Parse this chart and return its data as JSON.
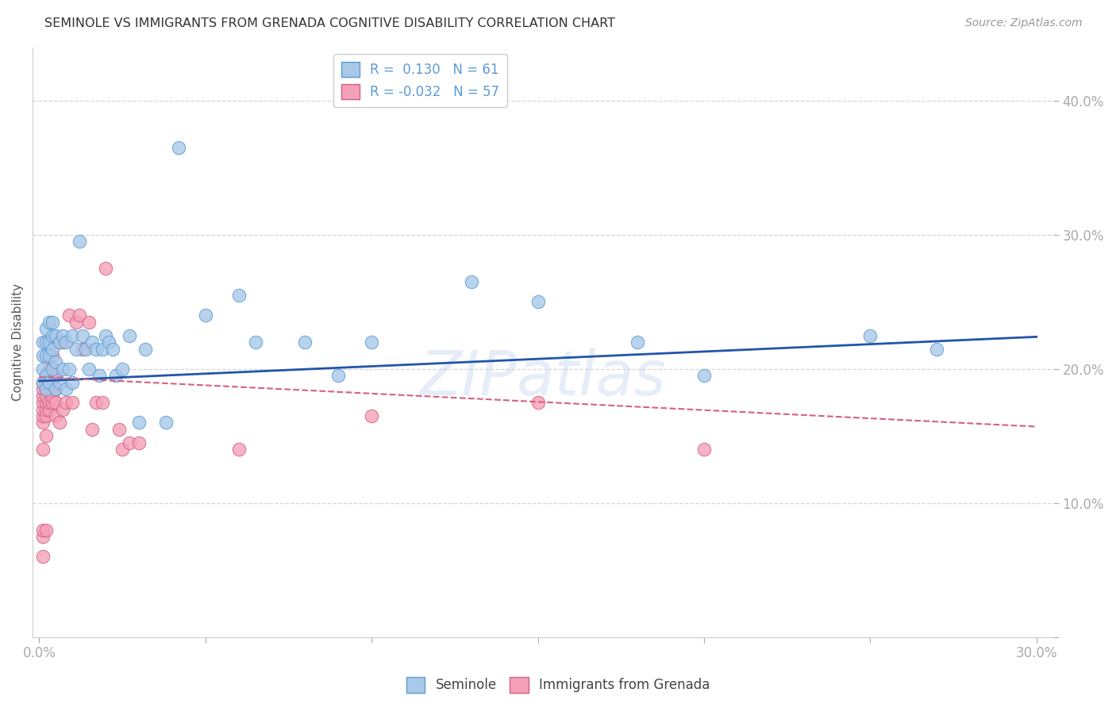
{
  "title": "SEMINOLE VS IMMIGRANTS FROM GRENADA COGNITIVE DISABILITY CORRELATION CHART",
  "source": "Source: ZipAtlas.com",
  "ylabel": "Cognitive Disability",
  "y_ticks": [
    0.0,
    0.1,
    0.2,
    0.3,
    0.4
  ],
  "y_tick_labels": [
    "",
    "10.0%",
    "20.0%",
    "30.0%",
    "40.0%"
  ],
  "x_ticks": [
    0.0,
    0.05,
    0.1,
    0.15,
    0.2,
    0.25,
    0.3
  ],
  "x_lim": [
    -0.002,
    0.305
  ],
  "y_lim": [
    0.0,
    0.44
  ],
  "watermark": "ZIPatlas",
  "blue_scatter_x": [
    0.001,
    0.001,
    0.001,
    0.001,
    0.002,
    0.002,
    0.002,
    0.002,
    0.002,
    0.003,
    0.003,
    0.003,
    0.003,
    0.003,
    0.004,
    0.004,
    0.004,
    0.004,
    0.005,
    0.005,
    0.005,
    0.006,
    0.006,
    0.007,
    0.007,
    0.008,
    0.008,
    0.009,
    0.01,
    0.01,
    0.011,
    0.012,
    0.013,
    0.014,
    0.015,
    0.016,
    0.017,
    0.018,
    0.019,
    0.02,
    0.021,
    0.022,
    0.023,
    0.025,
    0.027,
    0.03,
    0.032,
    0.038,
    0.042,
    0.05,
    0.06,
    0.065,
    0.08,
    0.09,
    0.1,
    0.13,
    0.15,
    0.18,
    0.2,
    0.25,
    0.27
  ],
  "blue_scatter_y": [
    0.19,
    0.2,
    0.21,
    0.22,
    0.185,
    0.195,
    0.21,
    0.22,
    0.23,
    0.19,
    0.21,
    0.22,
    0.235,
    0.19,
    0.2,
    0.215,
    0.225,
    0.235,
    0.185,
    0.205,
    0.225,
    0.19,
    0.22,
    0.2,
    0.225,
    0.185,
    0.22,
    0.2,
    0.19,
    0.225,
    0.215,
    0.295,
    0.225,
    0.215,
    0.2,
    0.22,
    0.215,
    0.195,
    0.215,
    0.225,
    0.22,
    0.215,
    0.195,
    0.2,
    0.225,
    0.16,
    0.215,
    0.16,
    0.365,
    0.24,
    0.255,
    0.22,
    0.22,
    0.195,
    0.22,
    0.265,
    0.25,
    0.22,
    0.195,
    0.225,
    0.215
  ],
  "pink_scatter_x": [
    0.001,
    0.001,
    0.001,
    0.001,
    0.001,
    0.001,
    0.001,
    0.001,
    0.001,
    0.001,
    0.001,
    0.002,
    0.002,
    0.002,
    0.002,
    0.002,
    0.002,
    0.002,
    0.002,
    0.002,
    0.003,
    0.003,
    0.003,
    0.003,
    0.003,
    0.004,
    0.004,
    0.004,
    0.004,
    0.004,
    0.005,
    0.005,
    0.005,
    0.005,
    0.006,
    0.006,
    0.007,
    0.007,
    0.008,
    0.009,
    0.01,
    0.011,
    0.012,
    0.013,
    0.015,
    0.016,
    0.017,
    0.019,
    0.02,
    0.024,
    0.025,
    0.027,
    0.03,
    0.06,
    0.1,
    0.15,
    0.2
  ],
  "pink_scatter_y": [
    0.06,
    0.075,
    0.08,
    0.14,
    0.16,
    0.165,
    0.17,
    0.175,
    0.18,
    0.185,
    0.19,
    0.08,
    0.15,
    0.165,
    0.17,
    0.175,
    0.18,
    0.185,
    0.19,
    0.195,
    0.17,
    0.175,
    0.185,
    0.19,
    0.2,
    0.175,
    0.18,
    0.19,
    0.2,
    0.21,
    0.165,
    0.175,
    0.185,
    0.195,
    0.16,
    0.22,
    0.17,
    0.22,
    0.175,
    0.24,
    0.175,
    0.235,
    0.24,
    0.215,
    0.235,
    0.155,
    0.175,
    0.175,
    0.275,
    0.155,
    0.14,
    0.145,
    0.145,
    0.14,
    0.165,
    0.175,
    0.14
  ],
  "blue_line": [
    0.0,
    0.3,
    0.191,
    0.224
  ],
  "pink_line": [
    0.0,
    0.3,
    0.194,
    0.157
  ],
  "blue_color": "#a8c8e8",
  "blue_edge": "#5b9bd5",
  "pink_color": "#f4a0b8",
  "pink_edge": "#d46080",
  "blue_line_color": "#2255aa",
  "pink_line_color": "#d46080",
  "background_color": "#ffffff",
  "grid_color": "#cccccc",
  "title_color": "#333333",
  "tick_label_color": "#5b9bd5"
}
